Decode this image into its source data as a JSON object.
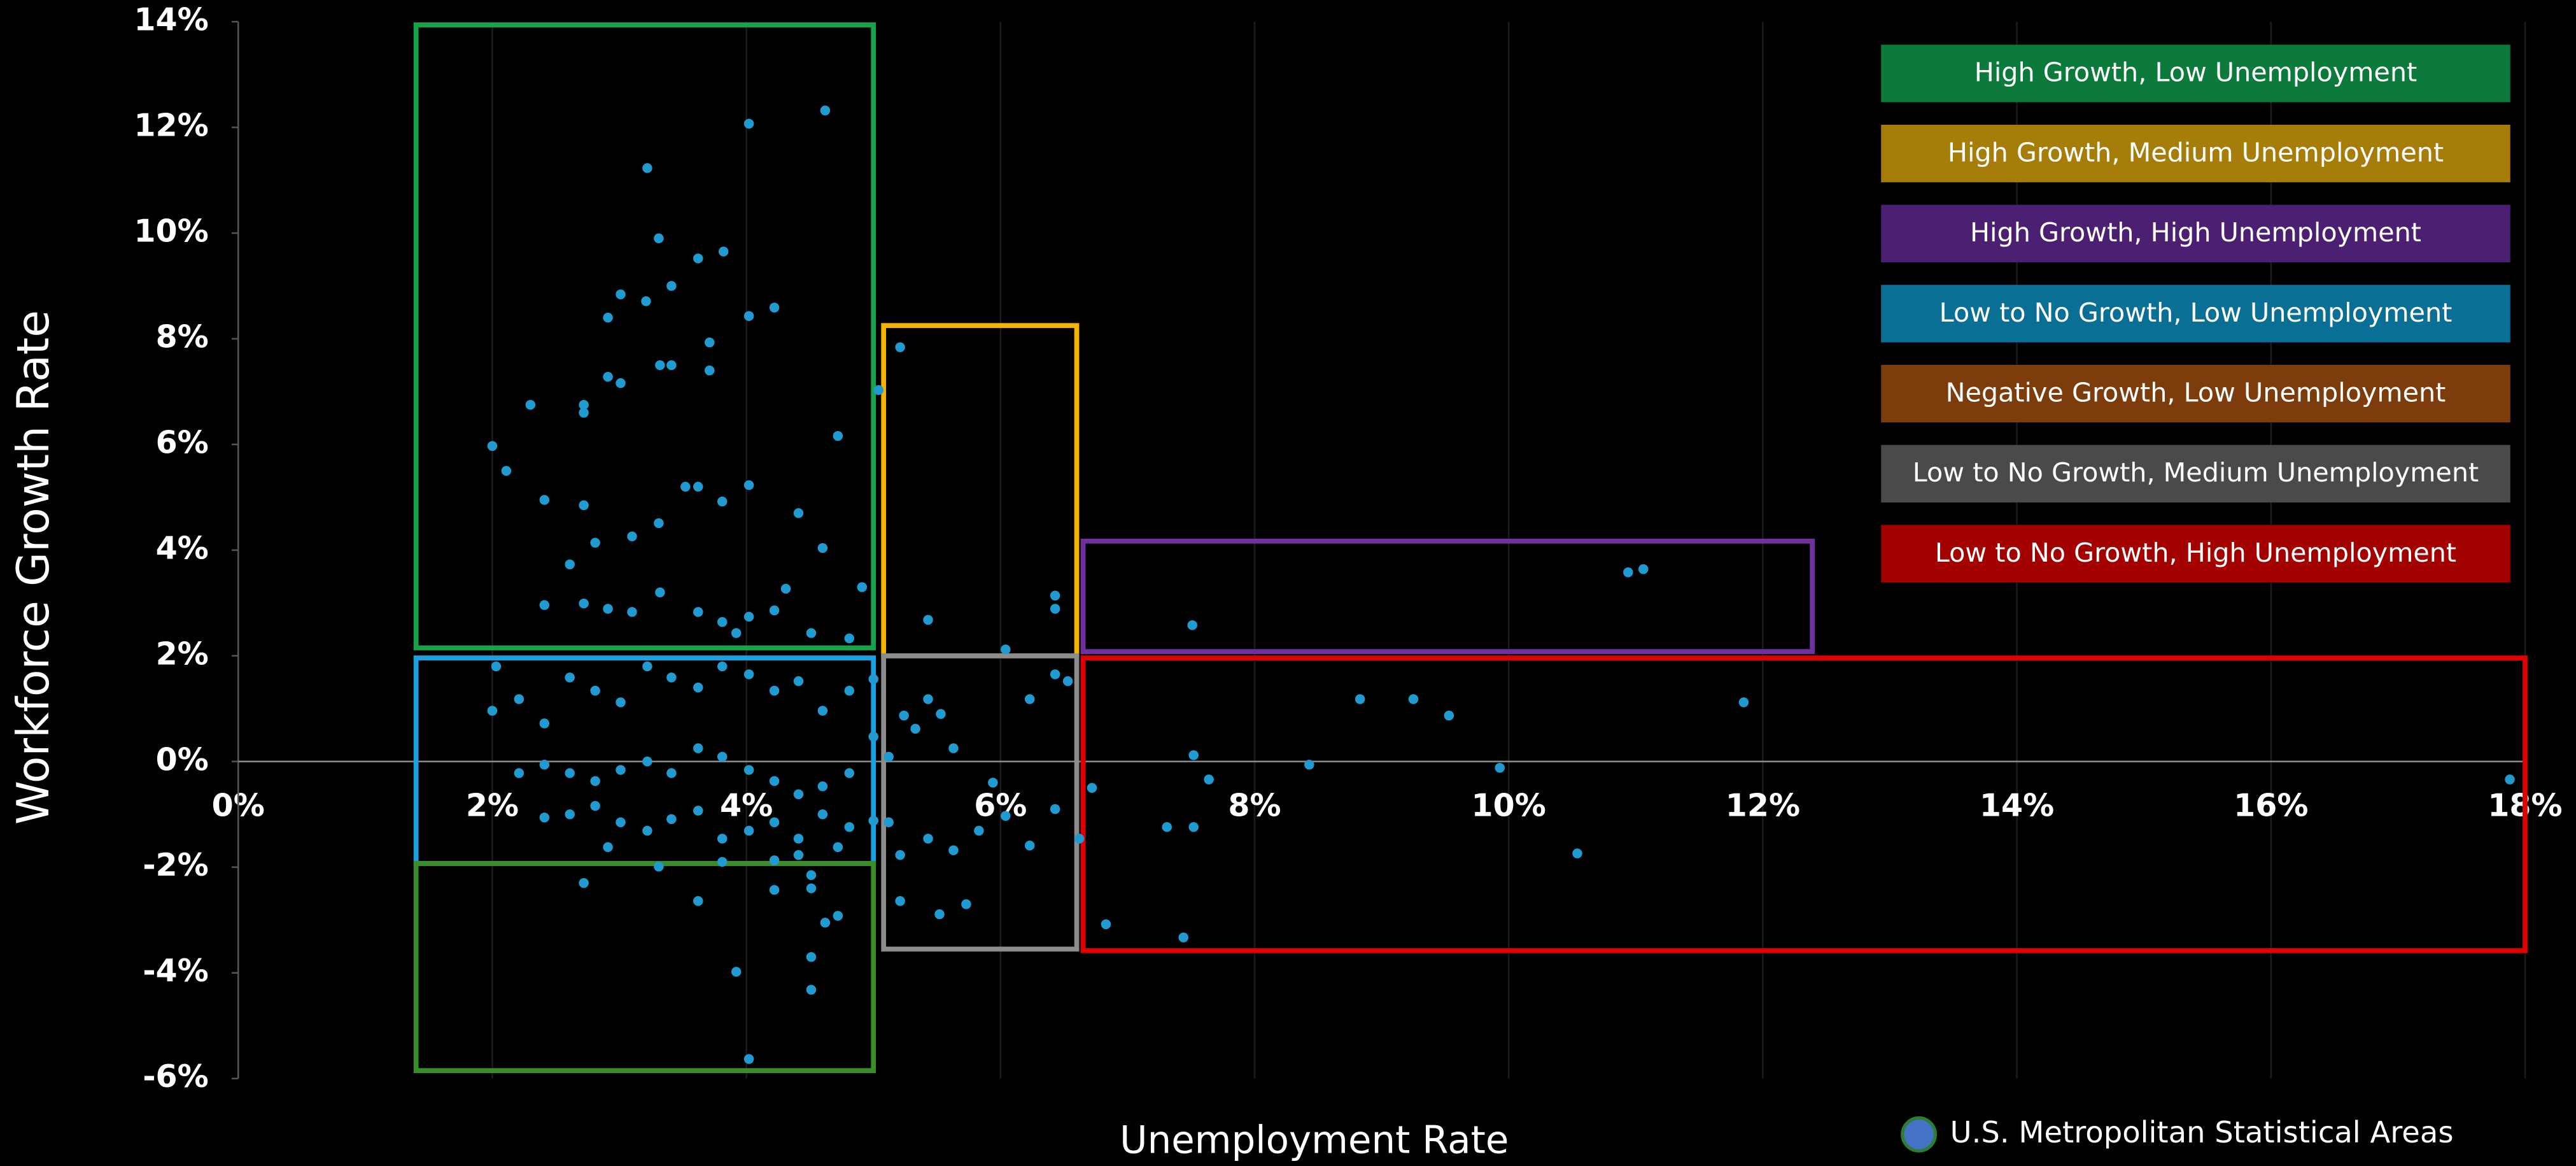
{
  "chart_data": {
    "type": "scatter",
    "x_label": "Unemployment Rate",
    "y_label": "Workforce Growth Rate",
    "xlim": [
      0,
      18
    ],
    "ylim": [
      -6,
      14
    ],
    "xticks": [
      {
        "value": 0,
        "label": "0%"
      },
      {
        "value": 2,
        "label": "2%"
      },
      {
        "value": 4,
        "label": "4%"
      },
      {
        "value": 6,
        "label": "6%"
      },
      {
        "value": 8,
        "label": "8%"
      },
      {
        "value": 10,
        "label": "10%"
      },
      {
        "value": 12,
        "label": "12%"
      },
      {
        "value": 14,
        "label": "14%"
      },
      {
        "value": 16,
        "label": "16%"
      },
      {
        "value": 18,
        "label": "18%"
      }
    ],
    "yticks": [
      {
        "value": -6,
        "label": "-6%"
      },
      {
        "value": -4,
        "label": "-4%"
      },
      {
        "value": -2,
        "label": "-2%"
      },
      {
        "value": 0,
        "label": "0%"
      },
      {
        "value": 2,
        "label": "2%"
      },
      {
        "value": 4,
        "label": "4%"
      },
      {
        "value": 6,
        "label": "6%"
      },
      {
        "value": 8,
        "label": "8%"
      },
      {
        "value": 10,
        "label": "10%"
      },
      {
        "value": 12,
        "label": "12%"
      },
      {
        "value": 14,
        "label": "14%"
      }
    ],
    "grid": true,
    "zones": [
      {
        "name": "High Growth, Low Unemployment",
        "color": "#0b7a3b",
        "border_color": "#17a34a",
        "x": [
          1.4,
          5.0
        ],
        "y": [
          2.15,
          13.94
        ]
      },
      {
        "name": "High Growth, Medium Unemployment",
        "color": "#a57d08",
        "border_color": "#f5b400",
        "x": [
          5.08,
          6.6
        ],
        "y": [
          2.0,
          8.25
        ]
      },
      {
        "name": "High Growth, High Unemployment",
        "color": "#4b2073",
        "border_color": "#7030a0",
        "x": [
          6.65,
          12.39
        ],
        "y": [
          2.08,
          4.17
        ]
      },
      {
        "name": "Low to No Growth, Low Unemployment",
        "color": "#0a6f95",
        "border_color": "#1ba1e2",
        "x": [
          1.4,
          5.0
        ],
        "y": [
          -1.93,
          1.96
        ]
      },
      {
        "name": "Negative Growth, Low Unemployment",
        "color": "#7d3c0c",
        "border_color": "#3d8c2a",
        "x": [
          1.4,
          5.0
        ],
        "y": [
          -5.85,
          -1.93
        ]
      },
      {
        "name": "Low to No Growth, Medium Unemployment",
        "color": "#4a4a4a",
        "border_color": "#8c8c8c",
        "x": [
          5.08,
          6.6
        ],
        "y": [
          -3.55,
          2.0
        ]
      },
      {
        "name": "Low to No Growth, High Unemployment",
        "color": "#a30000",
        "border_color": "#e00000",
        "x": [
          6.65,
          18.0
        ],
        "y": [
          -3.58,
          1.96
        ]
      }
    ],
    "series": [
      {
        "name": "U.S. Metropolitan Statistical Areas",
        "color": "#1f9bd1",
        "legend_color": "#4472c4",
        "x": [
          5.21,
          4.02,
          4.62,
          3.22,
          3.31,
          3.62,
          3.82,
          4.02,
          4.22,
          3.01,
          2.91,
          3.21,
          3.41,
          2.0,
          2.11,
          2.3,
          2.72,
          2.72,
          2.91,
          3.01,
          3.32,
          3.41,
          3.71,
          3.71,
          4.72,
          5.04,
          2.41,
          2.72,
          7.51,
          10.94,
          11.06,
          8.83,
          9.25,
          9.53,
          11.85,
          7.52,
          7.64,
          8.43,
          9.93,
          10.54,
          17.88,
          7.31,
          7.52,
          6.83,
          7.44,
          6.72,
          6.62,
          5.43,
          6.04,
          6.43,
          6.43,
          6.43,
          6.53,
          6.23,
          5.63,
          5.21,
          5.43,
          5.63,
          5.83,
          6.04,
          6.23,
          6.43,
          5.94,
          5.21,
          5.52,
          5.73,
          5.12,
          5.12,
          5.24,
          5.33,
          5.43,
          5.53,
          3.62,
          3.92,
          4.02,
          4.51,
          4.51,
          4.62,
          4.72,
          4.51,
          4.51,
          2.72,
          3.31,
          4.22,
          2.72,
          2.91,
          3.1,
          3.32,
          3.62,
          3.81,
          3.92,
          4.02,
          4.22,
          4.51,
          4.81,
          4.91,
          4.6,
          4.41,
          4.31,
          3.62,
          3.81,
          4.02,
          3.52,
          3.31,
          3.1,
          2.81,
          2.61,
          2.41,
          2.03,
          2.0,
          2.21,
          2.41,
          2.61,
          2.81,
          3.01,
          3.22,
          3.41,
          3.62,
          3.81,
          4.02,
          4.22,
          4.41,
          4.6,
          4.81,
          5.0,
          2.21,
          2.41,
          2.61,
          2.81,
          3.01,
          3.22,
          3.41,
          3.62,
          3.81,
          4.02,
          4.22,
          4.41,
          4.6,
          4.81,
          5.0,
          2.41,
          2.61,
          2.81,
          3.01,
          3.22,
          3.41,
          3.62,
          3.81,
          4.02,
          4.22,
          4.41,
          4.6,
          4.81,
          5.0,
          2.91,
          3.81,
          4.22,
          4.41,
          4.72
        ],
        "y": [
          7.84,
          12.07,
          12.32,
          11.23,
          9.9,
          9.52,
          9.65,
          8.43,
          8.59,
          8.84,
          8.4,
          8.71,
          9.0,
          5.97,
          5.5,
          6.75,
          6.75,
          6.6,
          7.28,
          7.16,
          7.5,
          7.5,
          7.93,
          7.4,
          6.16,
          7.03,
          4.95,
          4.85,
          2.58,
          3.58,
          3.64,
          1.18,
          1.18,
          0.87,
          1.12,
          0.12,
          -0.34,
          -0.06,
          -0.12,
          -1.74,
          -0.34,
          -1.24,
          -1.24,
          -3.08,
          -3.33,
          -0.5,
          -1.46,
          2.68,
          2.12,
          3.14,
          2.89,
          1.65,
          1.52,
          1.18,
          0.25,
          -1.77,
          -1.46,
          -1.68,
          -1.31,
          -1.03,
          -1.59,
          -0.9,
          -0.4,
          -2.64,
          -2.89,
          -2.7,
          0.09,
          -1.15,
          0.87,
          0.62,
          1.18,
          0.9,
          -2.64,
          -3.98,
          -5.63,
          -4.32,
          -3.7,
          -3.05,
          -2.92,
          -2.4,
          -2.15,
          -2.3,
          -1.99,
          -2.43,
          2.99,
          2.89,
          2.83,
          3.2,
          2.83,
          2.64,
          2.43,
          2.74,
          2.86,
          2.43,
          2.33,
          3.3,
          4.04,
          4.7,
          3.27,
          5.2,
          4.92,
          5.23,
          5.2,
          4.51,
          4.26,
          4.14,
          3.73,
          2.96,
          1.8,
          0.96,
          1.18,
          0.72,
          1.59,
          1.34,
          1.12,
          1.8,
          1.59,
          1.4,
          1.8,
          1.65,
          1.34,
          1.52,
          0.96,
          1.34,
          1.56,
          -0.22,
          -0.06,
          -0.22,
          -0.37,
          -0.16,
          0,
          -0.22,
          0.25,
          0.09,
          -0.16,
          -0.37,
          -0.62,
          -0.47,
          -0.22,
          0.47,
          -1.06,
          -1.0,
          -0.84,
          -1.15,
          -1.31,
          -1.09,
          -0.93,
          -1.46,
          -1.31,
          -1.15,
          -1.46,
          -1.0,
          -1.24,
          -1.12,
          -1.62,
          -1.9,
          -1.87,
          -1.77,
          -1.62
        ]
      }
    ]
  }
}
